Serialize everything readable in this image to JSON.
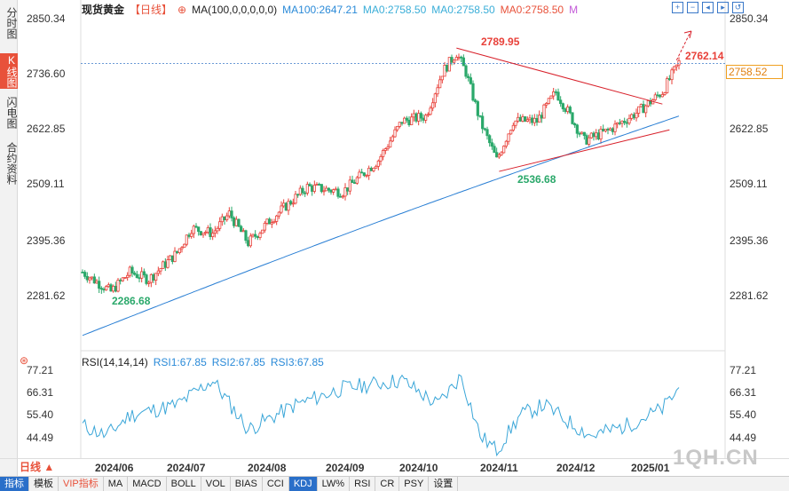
{
  "left_tabs": [
    {
      "label": "分时图",
      "active": false
    },
    {
      "label": "K线图",
      "active": true
    },
    {
      "label": "闪电图",
      "active": false
    },
    {
      "label": "合约资料",
      "active": false
    }
  ],
  "header": {
    "title": "现货黄金",
    "period": "【日线】",
    "ma_label": "MA(100,0,0,0,0,0)",
    "ma100": "MA100:2647.21",
    "ma0_1": "MA0:2758.50",
    "ma0_2": "MA0:2758.50",
    "ma0_3": "MA0:2758.50",
    "m_link": "M"
  },
  "toolbar": [
    "zoom-in-icon",
    "zoom-out-icon",
    "scroll-left-icon",
    "scroll-right-icon",
    "restore-icon"
  ],
  "y_axis": [
    "2850.34",
    "2736.60",
    "2622.85",
    "2509.11",
    "2395.36",
    "2281.62"
  ],
  "annotations": {
    "high": "2789.95",
    "low_nov": "2536.68",
    "low_jun": "2286.68",
    "last": "2762.14",
    "current_price": "2758.52"
  },
  "rsi": {
    "name": "RSI(14,14,14)",
    "rsi1": "RSI1:67.85",
    "rsi2": "RSI2:67.85",
    "rsi3": "RSI3:67.85",
    "y_axis": [
      "77.21",
      "66.31",
      "55.40",
      "44.49"
    ]
  },
  "x_axis": [
    "2024/06",
    "2024/07",
    "2024/08",
    "2024/09",
    "2024/10",
    "2024/11",
    "2024/12",
    "2025/01"
  ],
  "period_button": "日线 ▲",
  "watermark": "1QH.CN",
  "bottom_tabs": [
    {
      "label": "指标",
      "style": "first"
    },
    {
      "label": "模板",
      "style": ""
    },
    {
      "label": "VIP指标",
      "style": "vip"
    },
    {
      "label": "MA",
      "style": ""
    },
    {
      "label": "MACD",
      "style": ""
    },
    {
      "label": "BOLL",
      "style": ""
    },
    {
      "label": "VOL",
      "style": ""
    },
    {
      "label": "BIAS",
      "style": ""
    },
    {
      "label": "CCI",
      "style": ""
    },
    {
      "label": "KDJ",
      "style": "active"
    },
    {
      "label": "LW%",
      "style": ""
    },
    {
      "label": "RSI",
      "style": ""
    },
    {
      "label": "CR",
      "style": ""
    },
    {
      "label": "PSY",
      "style": ""
    },
    {
      "label": "设置",
      "style": ""
    }
  ],
  "colors": {
    "up": "#e8413a",
    "down": "#2aa86a",
    "ma": "#2a7fd4",
    "rsi": "#3aa6d8",
    "trend": "#d8202a"
  }
}
